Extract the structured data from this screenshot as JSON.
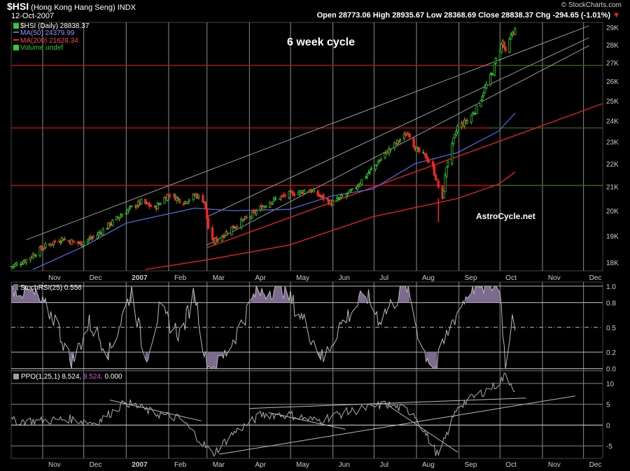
{
  "header": {
    "symbol": "$HSI",
    "name": "(Hong Kong Hang Seng)",
    "exchange": "INDX",
    "date": "12-Oct-2007",
    "ohlc": "Open 28773.06  High 28935.67  Low 28368.69  Close 28838.37  Chg -294.65 (-1.01%)",
    "brand": "© StockCharts.com",
    "change_arrow": "▼"
  },
  "colors": {
    "up": "#33cc33",
    "down": "#ff2222",
    "ma50": "#5566dd",
    "ma200": "#ee2222",
    "channel": "#9a9a9a",
    "hline_red": "#cc1111",
    "hline_green": "#1d6b1d",
    "grid": "#8c8c8c",
    "stoch_fill": "#7d6a8e",
    "ppo_line": "#a0a0a0"
  },
  "chart_data": [
    {
      "type": "candlestick",
      "legend": [
        {
          "label": "$HSI (Daily) 28838.37",
          "color": "#ffffff"
        },
        {
          "label": "MA(50) 24379.99",
          "color": "#5566dd"
        },
        {
          "label": "MA(200) 21628.34",
          "color": "#ee2222"
        },
        {
          "label": "Volume undef",
          "color": "#33cc33"
        }
      ],
      "annotations": [
        "6 week cycle",
        "AstroCycle.net"
      ],
      "y_ticks": [
        "18K",
        "19K",
        "20K",
        "21K",
        "22K",
        "23K",
        "24K",
        "25K",
        "26K",
        "27K",
        "28K",
        "29K"
      ],
      "y_tick_values": [
        18000,
        19000,
        20000,
        21000,
        22000,
        23000,
        24000,
        25000,
        26000,
        27000,
        28000,
        29000
      ],
      "ylim": [
        17700,
        29300
      ],
      "scale": "log",
      "x_ticks": [
        "Nov",
        "Dec",
        "2007",
        "Feb",
        "Mar",
        "Apr",
        "May",
        "Jun",
        "Jul",
        "Aug",
        "Sep",
        "Oct",
        "Nov",
        "Dec"
      ],
      "x_tick_dates": [
        "2006-11-01",
        "2006-12-01",
        "2007-01-01",
        "2007-02-01",
        "2007-03-01",
        "2007-04-01",
        "2007-05-01",
        "2007-06-01",
        "2007-07-01",
        "2007-08-01",
        "2007-09-01",
        "2007-10-01",
        "2007-11-01",
        "2007-12-01"
      ],
      "xlim": [
        "2006-10-09",
        "2007-12-15"
      ],
      "close_path": [
        [
          "2006-10-09",
          17850
        ],
        [
          "2006-10-20",
          18100
        ],
        [
          "2006-11-01",
          18550
        ],
        [
          "2006-11-15",
          18900
        ],
        [
          "2006-11-28",
          18700
        ],
        [
          "2006-12-10",
          19000
        ],
        [
          "2006-12-31",
          19950
        ],
        [
          "2007-01-12",
          20350
        ],
        [
          "2007-01-22",
          20100
        ],
        [
          "2007-02-01",
          20700
        ],
        [
          "2007-02-12",
          20350
        ],
        [
          "2007-02-21",
          20650
        ],
        [
          "2007-02-27",
          20400
        ],
        [
          "2007-03-02",
          19300
        ],
        [
          "2007-03-05",
          18750
        ],
        [
          "2007-03-12",
          19000
        ],
        [
          "2007-03-20",
          19350
        ],
        [
          "2007-04-01",
          19750
        ],
        [
          "2007-04-15",
          20350
        ],
        [
          "2007-05-01",
          20700
        ],
        [
          "2007-05-15",
          20850
        ],
        [
          "2007-05-31",
          20300
        ],
        [
          "2007-06-15",
          20800
        ],
        [
          "2007-06-30",
          21800
        ],
        [
          "2007-07-10",
          22500
        ],
        [
          "2007-07-26",
          23450
        ],
        [
          "2007-08-01",
          22600
        ],
        [
          "2007-08-08",
          22300
        ],
        [
          "2007-08-13",
          21800
        ],
        [
          "2007-08-17",
          21000
        ],
        [
          "2007-08-20",
          20400
        ],
        [
          "2007-08-23",
          21900
        ],
        [
          "2007-08-31",
          23700
        ],
        [
          "2007-09-07",
          24000
        ],
        [
          "2007-09-14",
          24600
        ],
        [
          "2007-09-21",
          25800
        ],
        [
          "2007-09-26",
          26500
        ],
        [
          "2007-09-28",
          27150
        ],
        [
          "2007-10-03",
          28200
        ],
        [
          "2007-10-05",
          27500
        ],
        [
          "2007-10-10",
          28700
        ],
        [
          "2007-10-12",
          28838
        ]
      ],
      "ma50": [
        [
          "2006-10-25",
          17750
        ],
        [
          "2006-12-01",
          18600
        ],
        [
          "2007-01-01",
          19500
        ],
        [
          "2007-02-20",
          20100
        ],
        [
          "2007-03-20",
          20000
        ],
        [
          "2007-04-30",
          20050
        ],
        [
          "2007-05-31",
          20600
        ],
        [
          "2007-06-30",
          20900
        ],
        [
          "2007-07-31",
          22000
        ],
        [
          "2007-08-31",
          22500
        ],
        [
          "2007-09-30",
          23500
        ],
        [
          "2007-10-12",
          24380
        ]
      ],
      "ma200": [
        [
          "2007-01-15",
          17750
        ],
        [
          "2007-03-01",
          18100
        ],
        [
          "2007-04-30",
          18650
        ],
        [
          "2007-06-30",
          19750
        ],
        [
          "2007-08-31",
          20500
        ],
        [
          "2007-09-30",
          21100
        ],
        [
          "2007-10-12",
          21628
        ]
      ],
      "channels": [
        [
          [
            "2006-10-20",
            18850
          ],
          [
            "2007-12-05",
            29100
          ]
        ],
        [
          [
            "2007-03-01",
            19750
          ],
          [
            "2007-12-05",
            28400
          ]
        ],
        [
          [
            "2007-03-01",
            18650
          ],
          [
            "2007-12-05",
            27950
          ]
        ]
      ],
      "support_line": [
        [
          "2007-03-01",
          18550
        ],
        [
          "2007-12-15",
          24850
        ]
      ],
      "horizontals_red": [
        26850,
        23650,
        21050
      ],
      "horizontals_green": [
        26850,
        23650,
        21050
      ]
    },
    {
      "type": "line",
      "title": "StochRSI(25) 0.556",
      "y_ticks": [
        "0.0",
        "0.2",
        "0.5",
        "0.8",
        "1.0"
      ],
      "y_tick_values": [
        0.0,
        0.2,
        0.5,
        0.8,
        1.0
      ],
      "ylim": [
        -0.02,
        1.05
      ],
      "series": [
        [
          "2006-10-09",
          1.0
        ],
        [
          "2006-10-25",
          0.9
        ],
        [
          "2006-11-10",
          0.6
        ],
        [
          "2006-11-22",
          0.05
        ],
        [
          "2006-12-05",
          0.55
        ],
        [
          "2006-12-20",
          0.2
        ],
        [
          "2007-01-05",
          0.95
        ],
        [
          "2007-01-15",
          0.1
        ],
        [
          "2007-01-25",
          0.7
        ],
        [
          "2007-02-10",
          0.4
        ],
        [
          "2007-02-20",
          0.95
        ],
        [
          "2007-03-01",
          0.0
        ],
        [
          "2007-03-10",
          0.05
        ],
        [
          "2007-03-25",
          0.5
        ],
        [
          "2007-04-05",
          0.9
        ],
        [
          "2007-04-25",
          1.0
        ],
        [
          "2007-05-10",
          0.6
        ],
        [
          "2007-05-25",
          0.1
        ],
        [
          "2007-06-05",
          0.5
        ],
        [
          "2007-06-25",
          0.9
        ],
        [
          "2007-07-05",
          0.6
        ],
        [
          "2007-07-25",
          1.0
        ],
        [
          "2007-08-05",
          0.25
        ],
        [
          "2007-08-15",
          0.0
        ],
        [
          "2007-08-25",
          0.5
        ],
        [
          "2007-09-10",
          1.0
        ],
        [
          "2007-10-01",
          1.0
        ],
        [
          "2007-10-05",
          0.0
        ],
        [
          "2007-10-10",
          0.7
        ],
        [
          "2007-10-12",
          0.556
        ]
      ]
    },
    {
      "type": "line",
      "title": "PPO(1,25,1) 8.524, 8.524, 0.000",
      "title_parts": {
        "label": "PPO(1,25,1) 8.524,",
        "signal": "8.524,",
        "hist": "0.000"
      },
      "y_ticks": [
        "-5",
        "0",
        "5",
        "10"
      ],
      "y_tick_values": [
        -5,
        0,
        5,
        10
      ],
      "ylim": [
        -8,
        13
      ],
      "series": [
        [
          "2006-10-09",
          1.0
        ],
        [
          "2006-11-01",
          1.0
        ],
        [
          "2006-11-20",
          1.5
        ],
        [
          "2006-12-10",
          0.5
        ],
        [
          "2007-01-01",
          5.5
        ],
        [
          "2007-01-20",
          3.0
        ],
        [
          "2007-02-10",
          1.5
        ],
        [
          "2007-03-05",
          -7.0
        ],
        [
          "2007-03-20",
          -2.0
        ],
        [
          "2007-04-10",
          2.5
        ],
        [
          "2007-04-30",
          2.5
        ],
        [
          "2007-05-20",
          1.0
        ],
        [
          "2007-06-10",
          3.0
        ],
        [
          "2007-07-10",
          5.0
        ],
        [
          "2007-07-30",
          3.0
        ],
        [
          "2007-08-17",
          -7.5
        ],
        [
          "2007-08-31",
          4.5
        ],
        [
          "2007-09-30",
          10.0
        ],
        [
          "2007-10-05",
          12.0
        ],
        [
          "2007-10-12",
          8.5
        ]
      ],
      "trendlines": [
        [
          [
            "2007-03-10",
            -7.0
          ],
          [
            "2007-11-25",
            7.0
          ]
        ],
        [
          [
            "2006-12-20",
            6.0
          ],
          [
            "2007-02-25",
            1.0
          ]
        ],
        [
          [
            "2007-04-15",
            3.0
          ],
          [
            "2007-06-10",
            -1.0
          ]
        ],
        [
          [
            "2007-04-01",
            4.0
          ],
          [
            "2007-10-20",
            6.5
          ]
        ],
        [
          [
            "2007-07-10",
            5.0
          ],
          [
            "2007-08-31",
            -6.5
          ]
        ]
      ]
    }
  ]
}
